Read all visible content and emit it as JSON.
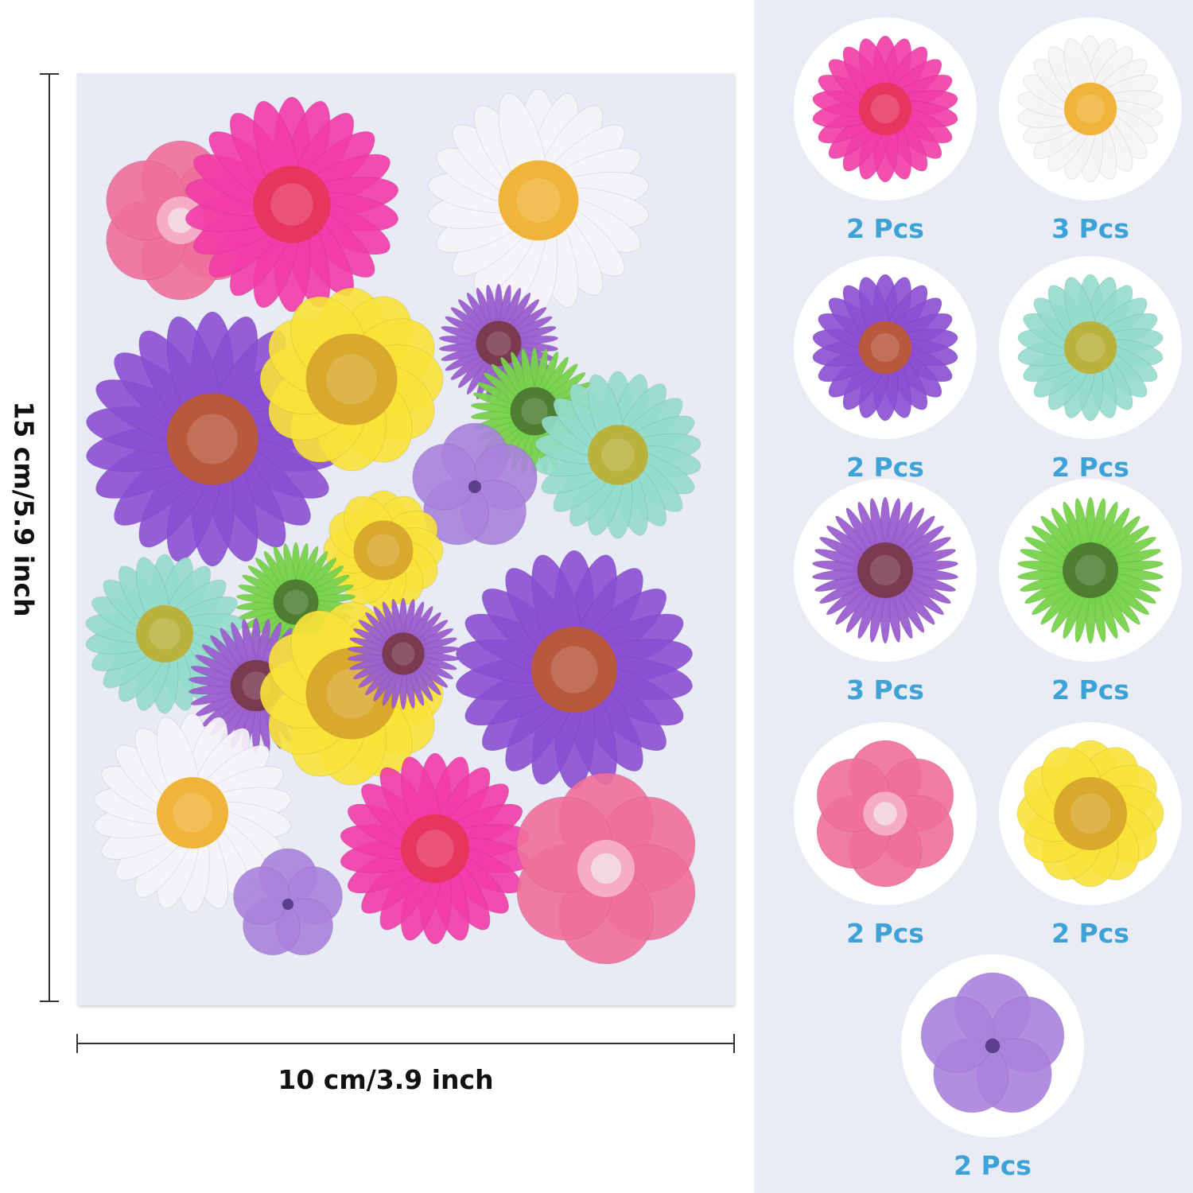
{
  "dimensions": {
    "width_label": "10 cm/3.9 inch",
    "height_label": "15 cm/5.9 inch"
  },
  "variants": [
    {
      "quantity": "2 Pcs",
      "flower": "magenta-daisy-icon",
      "petal_color": "#f23ca8",
      "center_color": "#e8355f",
      "style": "daisy"
    },
    {
      "quantity": "3 Pcs",
      "flower": "white-daisy-icon",
      "petal_color": "#f6f4f7",
      "center_color": "#f0b43a",
      "style": "daisy"
    },
    {
      "quantity": "2 Pcs",
      "flower": "purple-daisy-icon",
      "petal_color": "#8a4fd3",
      "center_color": "#b8583c",
      "style": "daisy"
    },
    {
      "quantity": "2 Pcs",
      "flower": "mint-daisy-icon",
      "petal_color": "#93dccc",
      "center_color": "#b9b23e",
      "style": "daisy"
    },
    {
      "quantity": "3 Pcs",
      "flower": "purple-aster-icon",
      "petal_color": "#9b5fd0",
      "center_color": "#7a3a4f",
      "style": "aster"
    },
    {
      "quantity": "2 Pcs",
      "flower": "green-aster-icon",
      "petal_color": "#77d34b",
      "center_color": "#4f7d33",
      "style": "aster"
    },
    {
      "quantity": "2 Pcs",
      "flower": "pink-larkspur-icon",
      "petal_color": "#ef6f9c",
      "center_color": "#f3d8e4",
      "style": "larkspur"
    },
    {
      "quantity": "2 Pcs",
      "flower": "yellow-daisy-icon",
      "petal_color": "#f8e23a",
      "center_color": "#d8a92d",
      "style": "wide"
    },
    {
      "quantity": "2 Pcs",
      "flower": "lilac-verbena-icon",
      "petal_color": "#a982dc",
      "center_color": "#5a3f8a",
      "style": "verbena"
    }
  ],
  "colors": {
    "quantity_text": "#3da2d8",
    "right_panel_bg": "#e9ebf5",
    "sheet_bg": "#e8eaf5"
  }
}
